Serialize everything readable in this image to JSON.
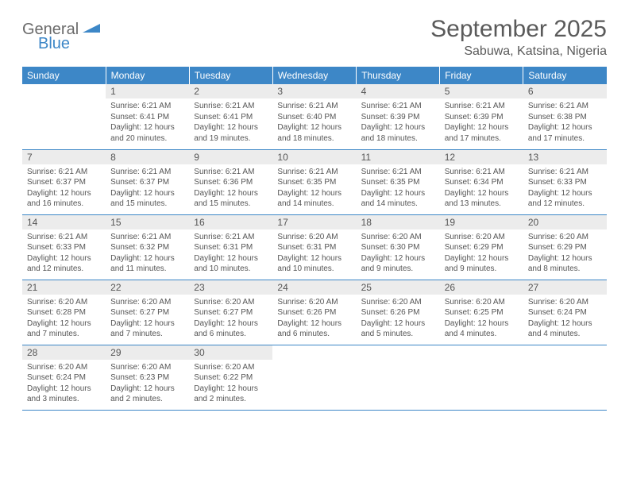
{
  "logo": {
    "word1": "General",
    "word2": "Blue"
  },
  "title": "September 2025",
  "location": "Sabuwa, Katsina, Nigeria",
  "colors": {
    "header_bg": "#3d87c7",
    "header_text": "#ffffff",
    "daynum_bg": "#ececec",
    "text": "#555555",
    "border": "#3d87c7",
    "logo_gray": "#6a6a6a",
    "logo_blue": "#3d87c7"
  },
  "day_headers": [
    "Sunday",
    "Monday",
    "Tuesday",
    "Wednesday",
    "Thursday",
    "Friday",
    "Saturday"
  ],
  "weeks": [
    [
      {
        "n": "",
        "sr": "",
        "ss": "",
        "dl": "",
        "empty": true
      },
      {
        "n": "1",
        "sr": "Sunrise: 6:21 AM",
        "ss": "Sunset: 6:41 PM",
        "dl": "Daylight: 12 hours and 20 minutes."
      },
      {
        "n": "2",
        "sr": "Sunrise: 6:21 AM",
        "ss": "Sunset: 6:41 PM",
        "dl": "Daylight: 12 hours and 19 minutes."
      },
      {
        "n": "3",
        "sr": "Sunrise: 6:21 AM",
        "ss": "Sunset: 6:40 PM",
        "dl": "Daylight: 12 hours and 18 minutes."
      },
      {
        "n": "4",
        "sr": "Sunrise: 6:21 AM",
        "ss": "Sunset: 6:39 PM",
        "dl": "Daylight: 12 hours and 18 minutes."
      },
      {
        "n": "5",
        "sr": "Sunrise: 6:21 AM",
        "ss": "Sunset: 6:39 PM",
        "dl": "Daylight: 12 hours and 17 minutes."
      },
      {
        "n": "6",
        "sr": "Sunrise: 6:21 AM",
        "ss": "Sunset: 6:38 PM",
        "dl": "Daylight: 12 hours and 17 minutes."
      }
    ],
    [
      {
        "n": "7",
        "sr": "Sunrise: 6:21 AM",
        "ss": "Sunset: 6:37 PM",
        "dl": "Daylight: 12 hours and 16 minutes."
      },
      {
        "n": "8",
        "sr": "Sunrise: 6:21 AM",
        "ss": "Sunset: 6:37 PM",
        "dl": "Daylight: 12 hours and 15 minutes."
      },
      {
        "n": "9",
        "sr": "Sunrise: 6:21 AM",
        "ss": "Sunset: 6:36 PM",
        "dl": "Daylight: 12 hours and 15 minutes."
      },
      {
        "n": "10",
        "sr": "Sunrise: 6:21 AM",
        "ss": "Sunset: 6:35 PM",
        "dl": "Daylight: 12 hours and 14 minutes."
      },
      {
        "n": "11",
        "sr": "Sunrise: 6:21 AM",
        "ss": "Sunset: 6:35 PM",
        "dl": "Daylight: 12 hours and 14 minutes."
      },
      {
        "n": "12",
        "sr": "Sunrise: 6:21 AM",
        "ss": "Sunset: 6:34 PM",
        "dl": "Daylight: 12 hours and 13 minutes."
      },
      {
        "n": "13",
        "sr": "Sunrise: 6:21 AM",
        "ss": "Sunset: 6:33 PM",
        "dl": "Daylight: 12 hours and 12 minutes."
      }
    ],
    [
      {
        "n": "14",
        "sr": "Sunrise: 6:21 AM",
        "ss": "Sunset: 6:33 PM",
        "dl": "Daylight: 12 hours and 12 minutes."
      },
      {
        "n": "15",
        "sr": "Sunrise: 6:21 AM",
        "ss": "Sunset: 6:32 PM",
        "dl": "Daylight: 12 hours and 11 minutes."
      },
      {
        "n": "16",
        "sr": "Sunrise: 6:21 AM",
        "ss": "Sunset: 6:31 PM",
        "dl": "Daylight: 12 hours and 10 minutes."
      },
      {
        "n": "17",
        "sr": "Sunrise: 6:20 AM",
        "ss": "Sunset: 6:31 PM",
        "dl": "Daylight: 12 hours and 10 minutes."
      },
      {
        "n": "18",
        "sr": "Sunrise: 6:20 AM",
        "ss": "Sunset: 6:30 PM",
        "dl": "Daylight: 12 hours and 9 minutes."
      },
      {
        "n": "19",
        "sr": "Sunrise: 6:20 AM",
        "ss": "Sunset: 6:29 PM",
        "dl": "Daylight: 12 hours and 9 minutes."
      },
      {
        "n": "20",
        "sr": "Sunrise: 6:20 AM",
        "ss": "Sunset: 6:29 PM",
        "dl": "Daylight: 12 hours and 8 minutes."
      }
    ],
    [
      {
        "n": "21",
        "sr": "Sunrise: 6:20 AM",
        "ss": "Sunset: 6:28 PM",
        "dl": "Daylight: 12 hours and 7 minutes."
      },
      {
        "n": "22",
        "sr": "Sunrise: 6:20 AM",
        "ss": "Sunset: 6:27 PM",
        "dl": "Daylight: 12 hours and 7 minutes."
      },
      {
        "n": "23",
        "sr": "Sunrise: 6:20 AM",
        "ss": "Sunset: 6:27 PM",
        "dl": "Daylight: 12 hours and 6 minutes."
      },
      {
        "n": "24",
        "sr": "Sunrise: 6:20 AM",
        "ss": "Sunset: 6:26 PM",
        "dl": "Daylight: 12 hours and 6 minutes."
      },
      {
        "n": "25",
        "sr": "Sunrise: 6:20 AM",
        "ss": "Sunset: 6:26 PM",
        "dl": "Daylight: 12 hours and 5 minutes."
      },
      {
        "n": "26",
        "sr": "Sunrise: 6:20 AM",
        "ss": "Sunset: 6:25 PM",
        "dl": "Daylight: 12 hours and 4 minutes."
      },
      {
        "n": "27",
        "sr": "Sunrise: 6:20 AM",
        "ss": "Sunset: 6:24 PM",
        "dl": "Daylight: 12 hours and 4 minutes."
      }
    ],
    [
      {
        "n": "28",
        "sr": "Sunrise: 6:20 AM",
        "ss": "Sunset: 6:24 PM",
        "dl": "Daylight: 12 hours and 3 minutes."
      },
      {
        "n": "29",
        "sr": "Sunrise: 6:20 AM",
        "ss": "Sunset: 6:23 PM",
        "dl": "Daylight: 12 hours and 2 minutes."
      },
      {
        "n": "30",
        "sr": "Sunrise: 6:20 AM",
        "ss": "Sunset: 6:22 PM",
        "dl": "Daylight: 12 hours and 2 minutes."
      },
      {
        "n": "",
        "sr": "",
        "ss": "",
        "dl": "",
        "empty": true
      },
      {
        "n": "",
        "sr": "",
        "ss": "",
        "dl": "",
        "empty": true
      },
      {
        "n": "",
        "sr": "",
        "ss": "",
        "dl": "",
        "empty": true
      },
      {
        "n": "",
        "sr": "",
        "ss": "",
        "dl": "",
        "empty": true
      }
    ]
  ]
}
